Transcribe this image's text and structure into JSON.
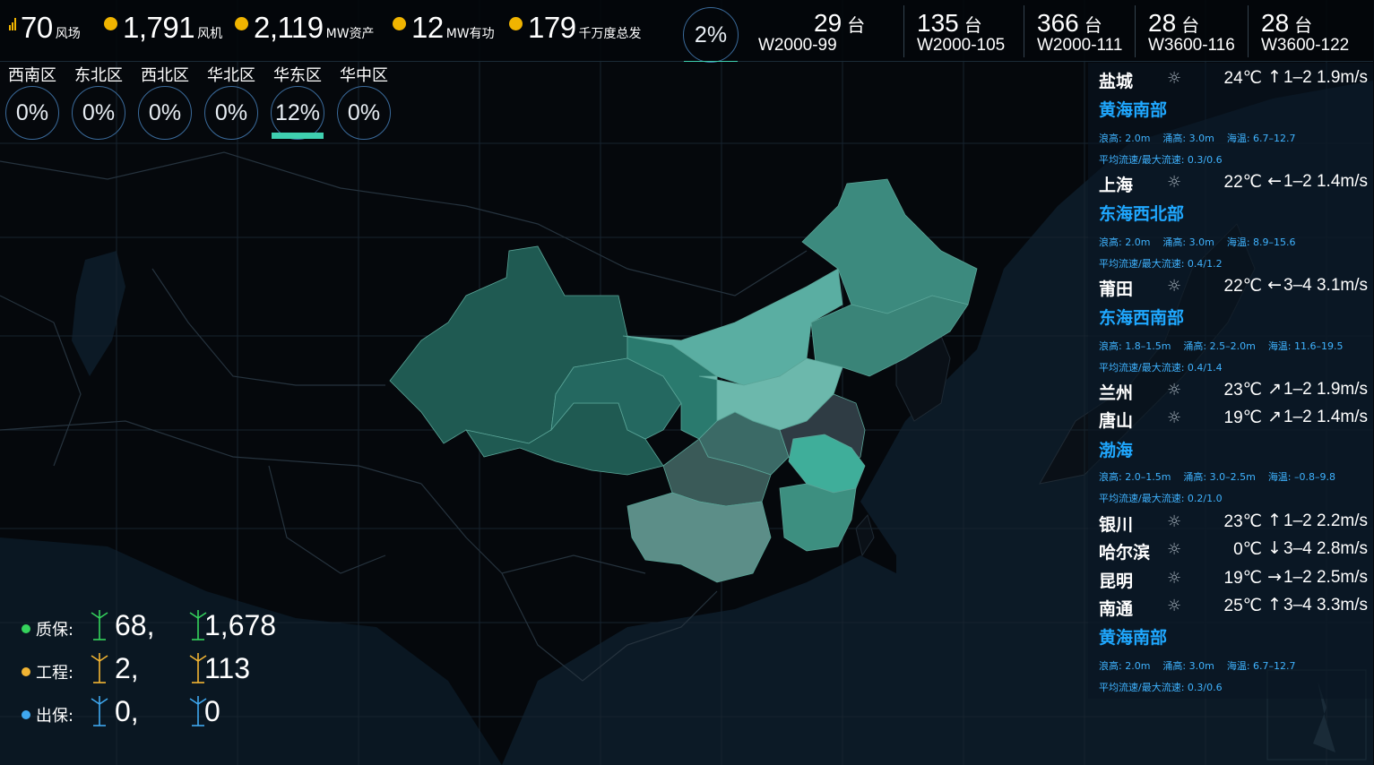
{
  "header": {
    "stats": [
      {
        "value": "70",
        "unit": "风场",
        "icon": "bar-chart-icon"
      },
      {
        "value": "1,791",
        "unit": "风机",
        "icon": "fan-icon"
      },
      {
        "value": "2,119",
        "unit": "MW资产",
        "icon": "coin-icon"
      },
      {
        "value": "12",
        "unit": "MW有功",
        "icon": "power-icon"
      },
      {
        "value": "179",
        "unit": "千万度总发",
        "icon": "bolt-icon"
      }
    ],
    "overall_percent": "2%",
    "overall_fill": 0.02
  },
  "models": [
    {
      "count": "29",
      "unit": "台",
      "name": "W2000-99"
    },
    {
      "count": "135",
      "unit": "台",
      "name": "W2000-105"
    },
    {
      "count": "366",
      "unit": "台",
      "name": "W2000-111"
    },
    {
      "count": "28",
      "unit": "台",
      "name": "W3600-116"
    },
    {
      "count": "28",
      "unit": "台",
      "name": "W3600-122"
    }
  ],
  "regions": [
    {
      "name": "西南区",
      "percent": "0%",
      "fill": 0
    },
    {
      "name": "东北区",
      "percent": "0%",
      "fill": 0
    },
    {
      "name": "西北区",
      "percent": "0%",
      "fill": 0
    },
    {
      "name": "华北区",
      "percent": "0%",
      "fill": 0
    },
    {
      "name": "华东区",
      "percent": "12%",
      "fill": 0.12
    },
    {
      "name": "华中区",
      "percent": "0%",
      "fill": 0
    }
  ],
  "weather": {
    "cities": [
      {
        "city": "盐城",
        "temp": "24℃",
        "arrow": "↑",
        "wind": "1–2  1.9m/s"
      },
      {
        "city": "上海",
        "temp": "22℃",
        "arrow": "←",
        "wind": "1–2  1.4m/s"
      },
      {
        "city": "莆田",
        "temp": "22℃",
        "arrow": "←",
        "wind": "3–4  3.1m/s"
      },
      {
        "city": "兰州",
        "temp": "23℃",
        "arrow": "↗",
        "wind": "1–2  1.9m/s"
      },
      {
        "city": "唐山",
        "temp": "19℃",
        "arrow": "↗",
        "wind": "1–2  1.4m/s"
      },
      {
        "city": "银川",
        "temp": "23℃",
        "arrow": "↑",
        "wind": "1–2  2.2m/s"
      },
      {
        "city": "哈尔滨",
        "temp": "0℃",
        "arrow": "↓",
        "wind": "3–4  2.8m/s"
      },
      {
        "city": "昆明",
        "temp": "19℃",
        "arrow": "→",
        "wind": "1–2  2.5m/s"
      },
      {
        "city": "南通",
        "temp": "25℃",
        "arrow": "↑",
        "wind": "3–4  3.3m/s"
      }
    ],
    "seas": [
      {
        "name": "黄海南部",
        "wave": "浪高: 2.0m",
        "swell": "涌高: 3.0m",
        "temp": "海温: 6.7–12.7",
        "flow": "平均流速/最大流速: 0.3/0.6"
      },
      {
        "name": "东海西北部",
        "wave": "浪高: 2.0m",
        "swell": "涌高: 3.0m",
        "temp": "海温: 8.9–15.6",
        "flow": "平均流速/最大流速: 0.4/1.2"
      },
      {
        "name": "东海西南部",
        "wave": "浪高: 1.8–1.5m",
        "swell": "涌高: 2.5–2.0m",
        "temp": "海温: 11.6–19.5",
        "flow": "平均流速/最大流速: 0.4/1.4"
      },
      {
        "name": "渤海",
        "wave": "浪高: 2.0–1.5m",
        "swell": "涌高: 3.0–2.5m",
        "temp": "海温: –0.8–9.8",
        "flow": "平均流速/最大流速: 0.2/1.0"
      },
      {
        "name": "黄海南部",
        "wave": "浪高: 2.0m",
        "swell": "涌高: 3.0m",
        "temp": "海温: 6.7–12.7",
        "flow": "平均流速/最大流速: 0.3/0.6"
      }
    ]
  },
  "warranty": [
    {
      "label": "质保:",
      "count_a": "68,",
      "count_b": "1,678",
      "color": "#35d35c"
    },
    {
      "label": "工程:",
      "count_a": "2,",
      "count_b": "113",
      "color": "#f2b533"
    },
    {
      "label": "出保:",
      "count_a": "0,",
      "count_b": "0",
      "color": "#3fa8f0"
    }
  ],
  "colors": {
    "accent": "#3fd0b0",
    "sea_title": "#1fa8ff",
    "sea_info": "#3fb3ff",
    "stat_icon": "#f0b400"
  }
}
